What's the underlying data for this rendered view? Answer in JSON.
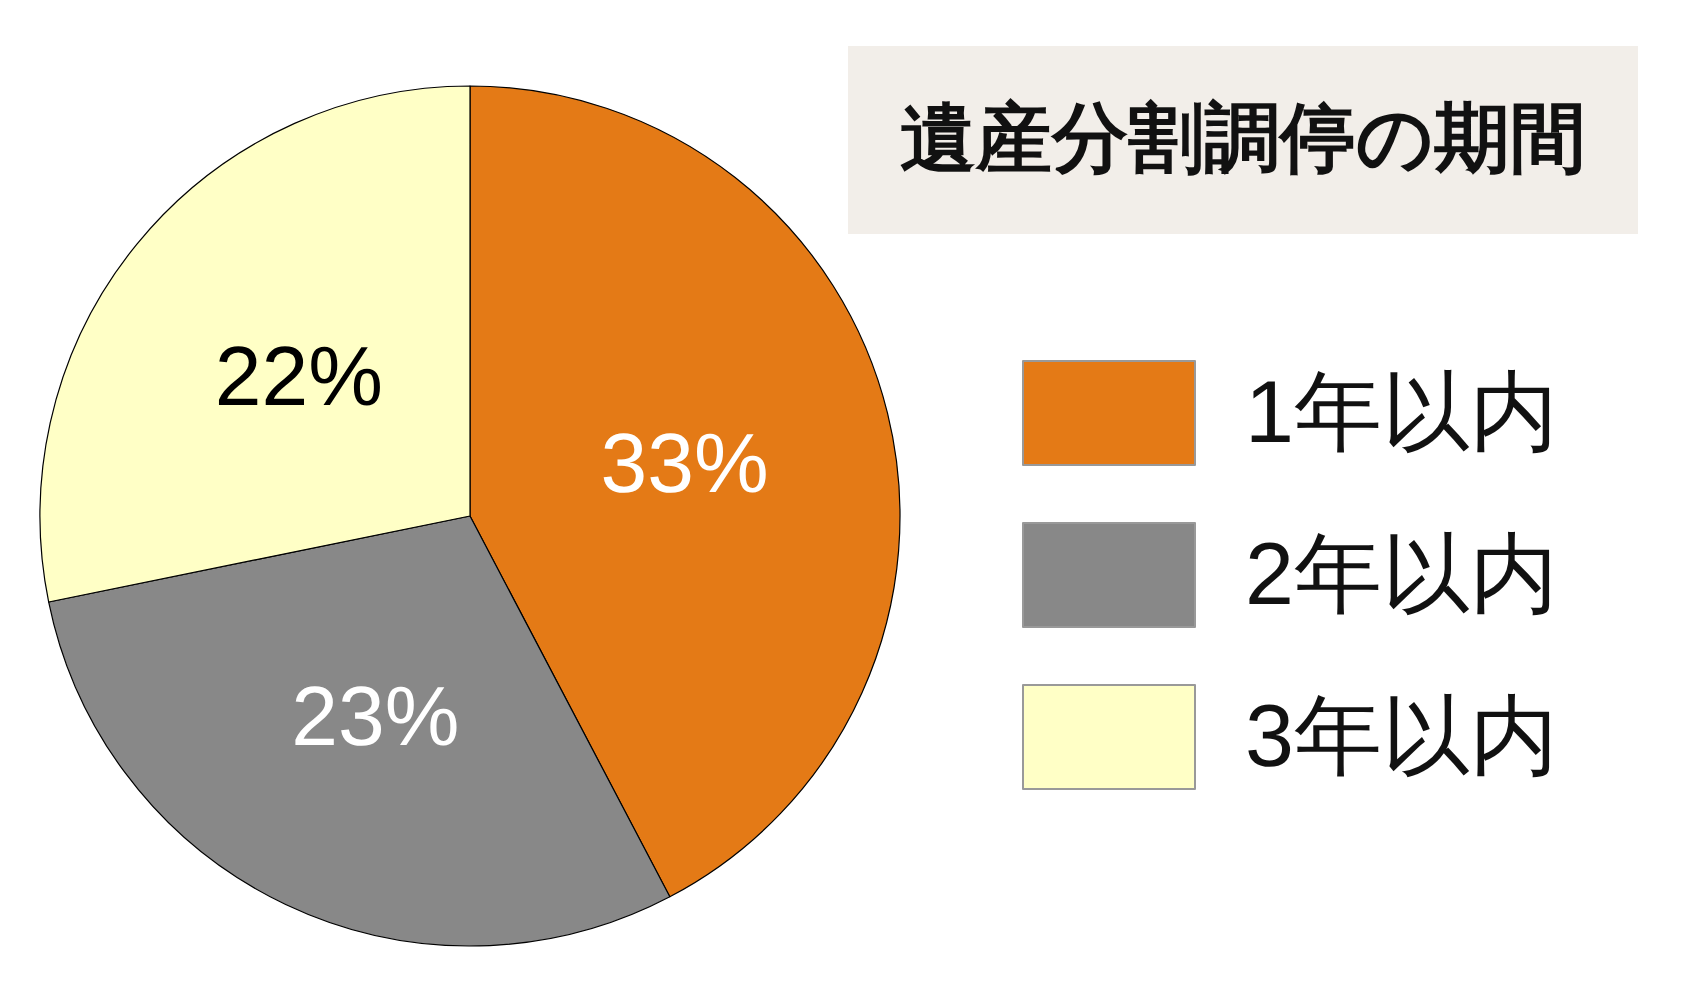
{
  "chart_data": {
    "type": "pie",
    "title": "遺産分割調停の期間",
    "categories": [
      "1年以内",
      "2年以内",
      "3年以内"
    ],
    "values": [
      33,
      23,
      22
    ],
    "value_labels": [
      "33%",
      "23%",
      "22%"
    ],
    "colors": [
      "#e47a16",
      "#888888",
      "#ffffc6"
    ],
    "legend": "right"
  }
}
